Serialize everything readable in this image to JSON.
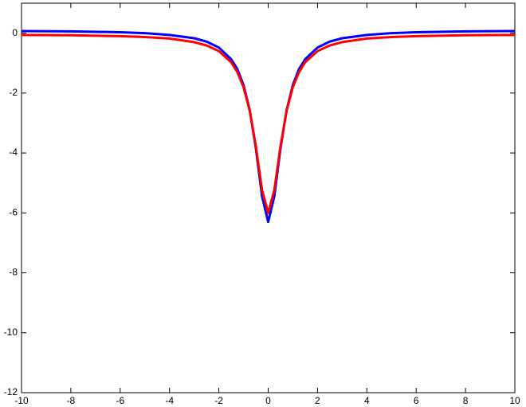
{
  "chart_data": {
    "type": "line",
    "x": [
      -10,
      -8,
      -6,
      -5,
      -4,
      -3,
      -2.5,
      -2,
      -1.5,
      -1.25,
      -1,
      -0.75,
      -0.5,
      -0.25,
      0,
      0.25,
      0.5,
      0.75,
      1,
      1.25,
      1.5,
      2,
      2.5,
      3,
      4,
      5,
      6,
      8,
      10
    ],
    "series": [
      {
        "color": "#0000ff",
        "values": [
          0.07,
          0.06,
          0.03,
          0.0,
          -0.06,
          -0.17,
          -0.28,
          -0.48,
          -0.87,
          -1.2,
          -1.73,
          -2.56,
          -3.84,
          -5.44,
          -6.3,
          -5.44,
          -3.84,
          -2.56,
          -1.73,
          -1.2,
          -0.87,
          -0.48,
          -0.28,
          -0.17,
          -0.06,
          0.0,
          0.03,
          0.06,
          0.07
        ]
      },
      {
        "color": "#ff0000",
        "values": [
          -0.06,
          -0.07,
          -0.1,
          -0.13,
          -0.18,
          -0.3,
          -0.41,
          -0.6,
          -0.97,
          -1.3,
          -1.8,
          -2.58,
          -3.77,
          -5.23,
          -6.0,
          -5.23,
          -3.77,
          -2.58,
          -1.8,
          -1.3,
          -0.97,
          -0.6,
          -0.41,
          -0.3,
          -0.18,
          -0.13,
          -0.1,
          -0.07,
          -0.06
        ]
      }
    ],
    "xlim": [
      -10,
      10
    ],
    "xticks": [
      -10,
      -8,
      -6,
      -4,
      -2,
      0,
      2,
      4,
      6,
      8,
      10
    ],
    "ylim": [
      -12,
      1
    ],
    "yticks": [
      -12,
      -10,
      -8,
      -6,
      -4,
      -2,
      0
    ]
  }
}
